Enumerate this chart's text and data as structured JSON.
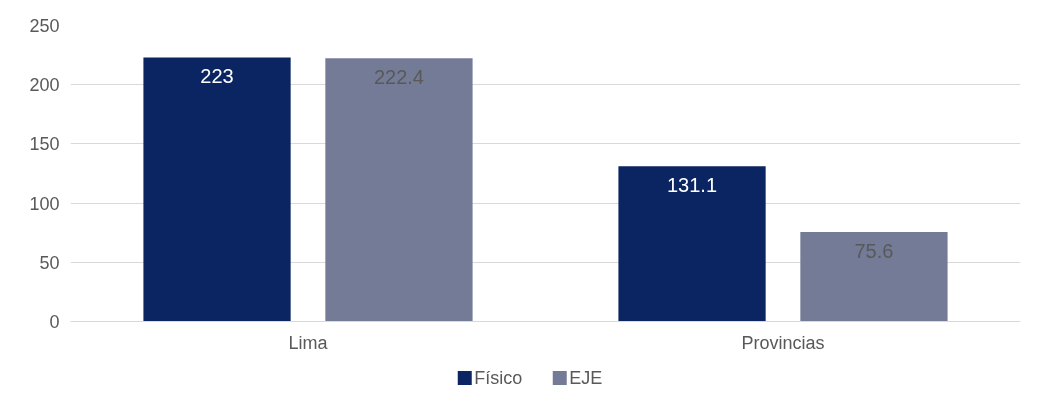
{
  "chart_data": {
    "type": "bar",
    "categories": [
      "Lima",
      "Provincias"
    ],
    "series": [
      {
        "name": "Físico",
        "color": "#0b2563",
        "values": [
          223,
          131.1
        ]
      },
      {
        "name": "EJE",
        "color": "#737b97",
        "values": [
          222.4,
          75.6
        ]
      }
    ],
    "ylim": [
      0,
      250
    ],
    "yticks": [
      0,
      50,
      100,
      150,
      200,
      250
    ],
    "grid": "y",
    "legend": "bottom",
    "data_labels": true
  }
}
